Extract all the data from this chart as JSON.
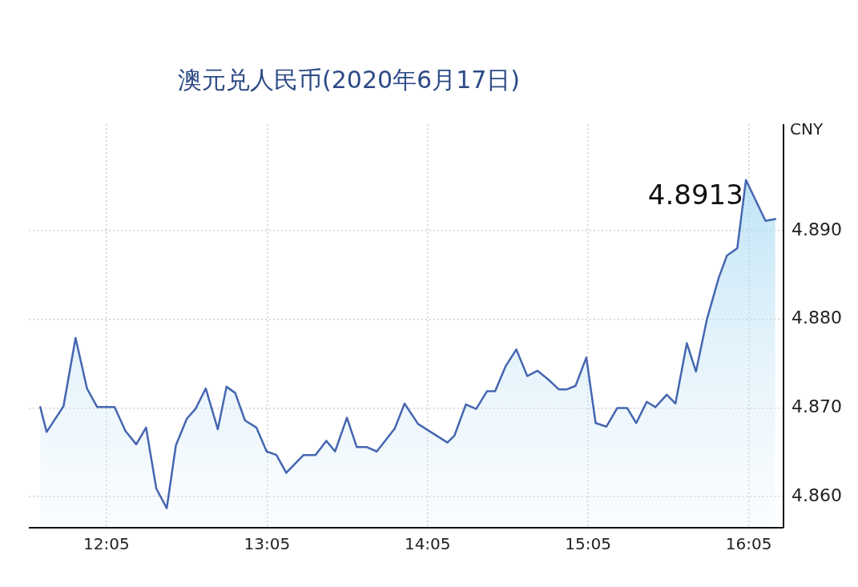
{
  "chart_data": {
    "type": "area",
    "title": "澳元兑人民币(2020年6月17日)",
    "ylabel": "CNY",
    "x": [
      11.671,
      11.711,
      11.816,
      11.891,
      11.962,
      12.026,
      12.134,
      12.202,
      12.269,
      12.33,
      12.394,
      12.459,
      12.516,
      12.584,
      12.638,
      12.702,
      12.777,
      12.831,
      12.885,
      12.946,
      13.017,
      13.081,
      13.142,
      13.203,
      13.311,
      13.385,
      13.453,
      13.507,
      13.581,
      13.642,
      13.703,
      13.767,
      13.879,
      13.94,
      14.024,
      14.207,
      14.251,
      14.322,
      14.386,
      14.454,
      14.504,
      14.569,
      14.636,
      14.704,
      14.768,
      14.836,
      14.9,
      14.951,
      15.005,
      15.072,
      15.13,
      15.197,
      15.265,
      15.326,
      15.383,
      15.448,
      15.502,
      15.573,
      15.627,
      15.698,
      15.755,
      15.823,
      15.897,
      15.948,
      16.012,
      16.066,
      16.188,
      16.249
    ],
    "series": [
      {
        "color": "#4566b0",
        "values": [
          4.8701,
          4.8673,
          4.8702,
          4.8779,
          4.8722,
          4.8701,
          4.8701,
          4.8674,
          4.8659,
          4.8678,
          4.8609,
          4.8587,
          4.8658,
          4.8688,
          4.8699,
          4.8722,
          4.8676,
          4.8724,
          4.8717,
          4.8686,
          4.8678,
          4.8651,
          4.8647,
          4.8627,
          4.8647,
          4.8647,
          4.8663,
          4.8651,
          4.8689,
          4.8656,
          4.8656,
          4.8651,
          4.8677,
          4.8705,
          4.8682,
          4.8661,
          4.8669,
          4.8704,
          4.8699,
          4.8719,
          4.8719,
          4.8747,
          4.8766,
          4.8736,
          4.8742,
          4.8732,
          4.8721,
          4.8721,
          4.8725,
          4.8757,
          4.8683,
          4.8679,
          4.87,
          4.87,
          4.8683,
          4.8707,
          4.8701,
          4.8715,
          4.8705,
          4.8773,
          4.8741,
          4.88,
          4.8847,
          4.8872,
          4.888,
          4.8957,
          4.8911,
          4.8913
        ]
      }
    ],
    "xlim": [
      11.6,
      16.3
    ],
    "xticks": [
      {
        "value": 12.0833,
        "label": "12:05"
      },
      {
        "value": 13.0833,
        "label": "13:05"
      },
      {
        "value": 14.0833,
        "label": "14:05"
      },
      {
        "value": 15.0833,
        "label": "15:05"
      },
      {
        "value": 16.0833,
        "label": "16:05"
      }
    ],
    "ylim": [
      4.8565,
      4.902
    ],
    "yticks": [
      {
        "value": 4.86,
        "label": "4.860"
      },
      {
        "value": 4.87,
        "label": "4.870"
      },
      {
        "value": 4.88,
        "label": "4.880"
      },
      {
        "value": 4.89,
        "label": "4.890"
      }
    ],
    "annotations": [
      {
        "text": "4.8913",
        "x": 16.249,
        "y": 4.8913
      }
    ],
    "grid": true,
    "legend": false,
    "marker": "none",
    "line_style": "solid"
  }
}
